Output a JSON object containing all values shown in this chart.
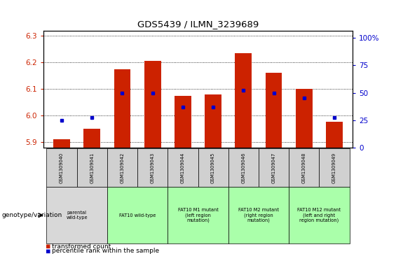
{
  "title": "GDS5439 / ILMN_3239689",
  "samples": [
    "GSM1309040",
    "GSM1309041",
    "GSM1309042",
    "GSM1309043",
    "GSM1309044",
    "GSM1309045",
    "GSM1309046",
    "GSM1309047",
    "GSM1309048",
    "GSM1309049"
  ],
  "red_values": [
    5.91,
    5.95,
    6.175,
    6.205,
    6.075,
    6.078,
    6.235,
    6.16,
    6.1,
    5.975
  ],
  "blue_values": [
    25,
    27,
    50,
    50,
    37,
    37,
    52,
    50,
    45,
    27
  ],
  "ylim_left": [
    5.88,
    6.32
  ],
  "ylim_right": [
    0,
    107
  ],
  "yticks_left": [
    5.9,
    6.0,
    6.1,
    6.2,
    6.3
  ],
  "yticks_right": [
    0,
    25,
    50,
    75,
    100
  ],
  "bar_color": "#cc2200",
  "dot_color": "#0000cc",
  "bar_bottom": 5.88,
  "genotype_groups": [
    {
      "label": "parental\nwild-type",
      "cols": [
        0,
        1
      ],
      "color": "#d8d8d8"
    },
    {
      "label": "FAT10 wild-type",
      "cols": [
        2,
        3
      ],
      "color": "#aaffaa"
    },
    {
      "label": "FAT10 M1 mutant\n(left region\nmutation)",
      "cols": [
        4,
        5
      ],
      "color": "#aaffaa"
    },
    {
      "label": "FAT10 M2 mutant\n(right region\nmutation)",
      "cols": [
        6,
        7
      ],
      "color": "#aaffaa"
    },
    {
      "label": "FAT10 M12 mutant\n(left and right\nregion mutation)",
      "cols": [
        8,
        9
      ],
      "color": "#aaffaa"
    }
  ],
  "legend_red": "transformed count",
  "legend_blue": "percentile rank within the sample",
  "genotype_label": "genotype/variation"
}
